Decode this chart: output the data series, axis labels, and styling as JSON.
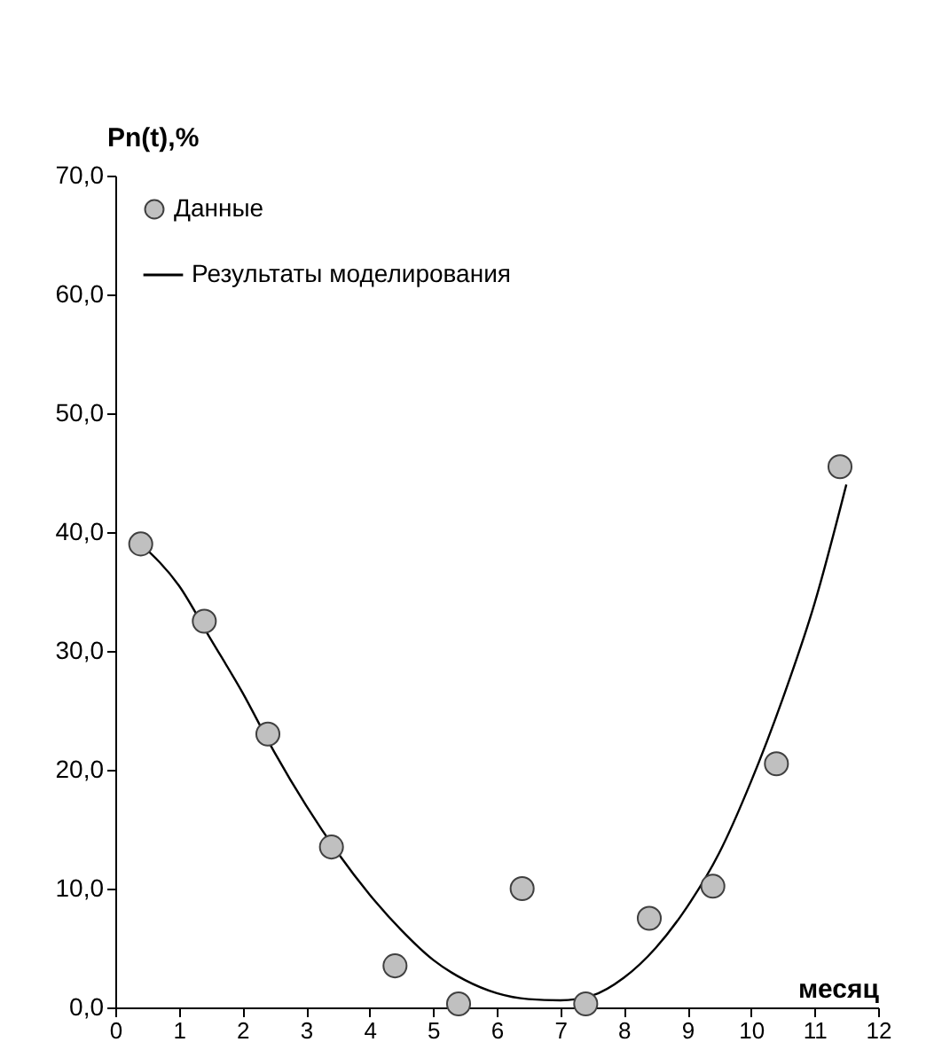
{
  "chart_data": {
    "type": "scatter",
    "xlabel": "месяц",
    "ylabel": "Pn(t),%",
    "xlim": [
      0,
      12
    ],
    "xticks": [
      0,
      1,
      2,
      3,
      4,
      5,
      6,
      7,
      8,
      9,
      10,
      11,
      12
    ],
    "ylim": [
      0,
      70
    ],
    "yticks": [
      {
        "value": 0,
        "label": "0,0"
      },
      {
        "value": 10,
        "label": "10,0"
      },
      {
        "value": 20,
        "label": "20,0"
      },
      {
        "value": 30,
        "label": "30,0"
      },
      {
        "value": 40,
        "label": "40,0"
      },
      {
        "value": 50,
        "label": "50,0"
      },
      {
        "value": 60,
        "label": "60,0"
      },
      {
        "value": 70,
        "label": "70,0"
      }
    ],
    "grid": false,
    "legend": "top left",
    "series": [
      {
        "name": "Данные",
        "marker": "circle",
        "color": "#c0c0c0",
        "x": [
          0.4,
          1.4,
          2.4,
          3.4,
          4.4,
          5.4,
          6.4,
          7.4,
          8.4,
          9.4,
          10.4,
          11.4
        ],
        "values": [
          39,
          32.5,
          23,
          13.5,
          3.5,
          0.3,
          10,
          0.3,
          7.5,
          10.2,
          20.5,
          45.5
        ]
      },
      {
        "name": "Результаты моделирования",
        "type": "line",
        "marker": "none",
        "line_style": "solid",
        "color": "#000000",
        "x": [
          0.4,
          1,
          1.5,
          2,
          2.5,
          3,
          3.5,
          4,
          4.5,
          5,
          5.5,
          6,
          6.5,
          7,
          7.5,
          8,
          8.5,
          9,
          9.5,
          10,
          10.5,
          11,
          11.5
        ],
        "values": [
          39,
          35.5,
          31,
          26.5,
          21.5,
          17,
          13,
          9.5,
          6.5,
          4,
          2.3,
          1.2,
          0.7,
          0.6,
          1,
          2.5,
          5,
          8.5,
          13,
          19,
          26,
          34,
          44
        ]
      }
    ]
  }
}
